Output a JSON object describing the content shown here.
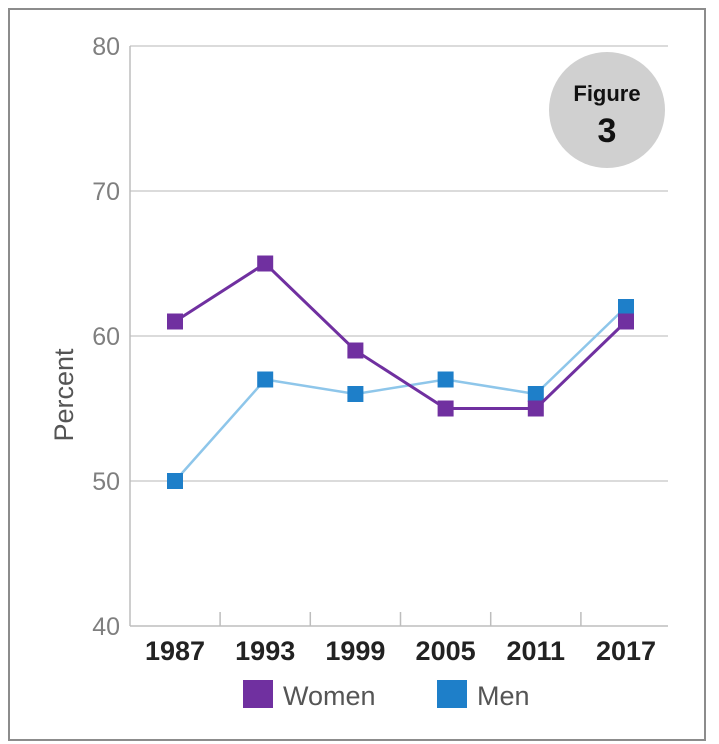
{
  "badge": {
    "title": "Figure",
    "number": "3"
  },
  "chart_data": {
    "type": "line",
    "categories": [
      "1987",
      "1993",
      "1999",
      "2005",
      "2011",
      "2017"
    ],
    "ylabel": "Percent",
    "ylim": [
      40,
      80
    ],
    "yticks": [
      40,
      50,
      60,
      70,
      80
    ],
    "grid": true,
    "legend_placement": "bottom-center",
    "series": [
      {
        "name": "Women",
        "color": "#7030a0",
        "values": [
          61,
          65,
          59,
          55,
          55,
          61
        ]
      },
      {
        "name": "Men",
        "color": "#1e7fc9",
        "line_color": "#8ec6ea",
        "values": [
          50,
          57,
          56,
          57,
          56,
          62
        ]
      }
    ]
  }
}
